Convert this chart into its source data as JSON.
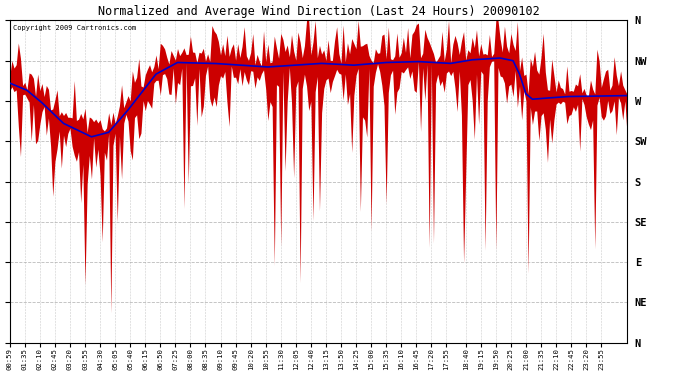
{
  "title": "Normalized and Average Wind Direction (Last 24 Hours) 20090102",
  "copyright": "Copyright 2009 Cartronics.com",
  "bg_color": "#ffffff",
  "red_color": "#cc0000",
  "blue_color": "#0000cc",
  "grid_color": "#aaaaaa",
  "ytick_labels_right": [
    "N",
    "NW",
    "W",
    "SW",
    "S",
    "SE",
    "E",
    "NE",
    "N"
  ],
  "ytick_values": [
    360,
    315,
    270,
    225,
    180,
    135,
    90,
    45,
    0
  ],
  "ylim": [
    0,
    360
  ],
  "xtick_labels": [
    "00:59",
    "01:35",
    "02:10",
    "02:45",
    "03:20",
    "03:55",
    "04:30",
    "05:05",
    "05:40",
    "06:15",
    "06:50",
    "07:25",
    "08:00",
    "08:35",
    "09:10",
    "09:45",
    "10:20",
    "10:55",
    "11:30",
    "12:05",
    "12:40",
    "13:15",
    "13:50",
    "14:25",
    "15:00",
    "15:35",
    "16:10",
    "16:45",
    "17:20",
    "17:55",
    "18:40",
    "19:15",
    "19:50",
    "20:25",
    "21:00",
    "21:35",
    "22:10",
    "22:45",
    "23:20",
    "23:55"
  ],
  "n_points": 288,
  "seed": 42
}
